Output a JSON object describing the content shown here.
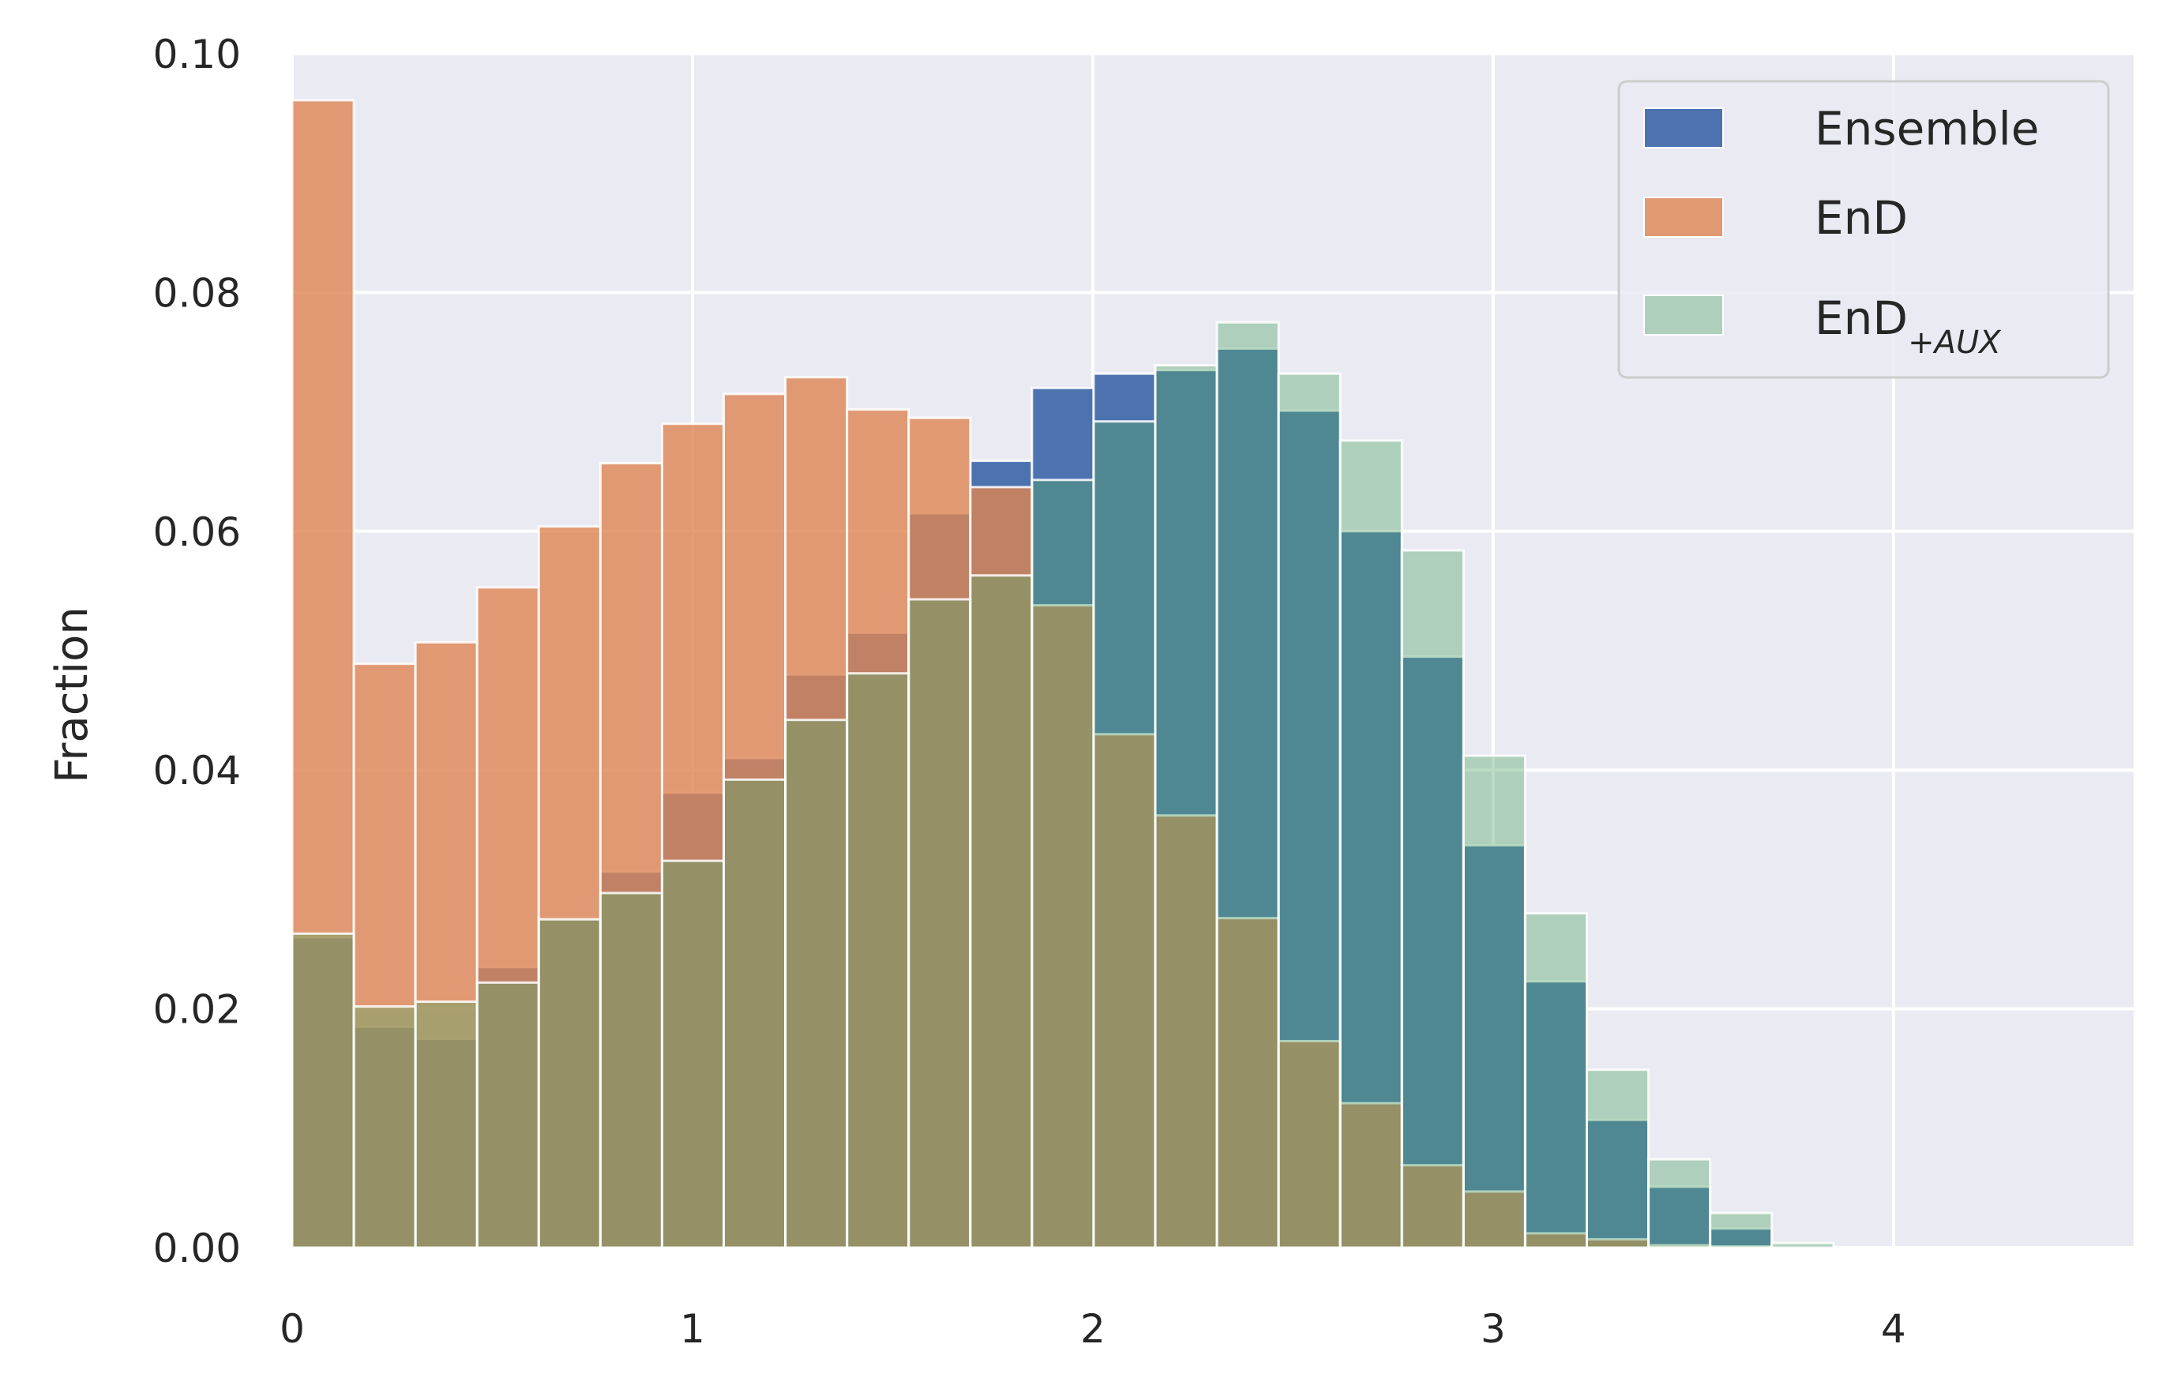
{
  "chart_data": {
    "type": "bar",
    "subtype": "overlapping-histogram",
    "title": "",
    "xlabel": "",
    "ylabel": "Fraction",
    "xlim": [
      0,
      4.6
    ],
    "ylim": [
      0,
      0.1
    ],
    "x_ticks": [
      "0",
      "1",
      "2",
      "3",
      "4"
    ],
    "y_ticks": [
      "0.00",
      "0.02",
      "0.04",
      "0.06",
      "0.08",
      "0.10"
    ],
    "grid": true,
    "legend_position": "top-right",
    "bin_edges": [
      0,
      0.154,
      0.308,
      0.462,
      0.616,
      0.77,
      0.924,
      1.078,
      1.232,
      1.386,
      1.54,
      1.694,
      1.848,
      2.002,
      2.156,
      2.31,
      2.464,
      2.618,
      2.772,
      2.926,
      3.08,
      3.234,
      3.388,
      3.542,
      3.696,
      3.85
    ],
    "series": [
      {
        "name": "Ensemble",
        "color": "#4c72b0",
        "opacity": 1.0,
        "values": [
          0.026,
          0.0185,
          0.0175,
          0.0235,
          0.0275,
          0.0315,
          0.0381,
          0.041,
          0.048,
          0.0515,
          0.0615,
          0.0659,
          0.072,
          0.0732,
          0.0735,
          0.0753,
          0.0701,
          0.06,
          0.0495,
          0.0337,
          0.0223,
          0.0107,
          0.0051,
          0.0016,
          0.0002
        ]
      },
      {
        "name": "EnD",
        "color": "#dd8452",
        "opacity": 0.8,
        "values": [
          0.0961,
          0.0489,
          0.0507,
          0.0553,
          0.0604,
          0.0657,
          0.069,
          0.0715,
          0.0729,
          0.0702,
          0.0695,
          0.0637,
          0.0538,
          0.043,
          0.0362,
          0.0276,
          0.0173,
          0.0121,
          0.0069,
          0.0047,
          0.0012,
          0.0007,
          0.0002,
          0.0001,
          0.0
        ]
      },
      {
        "name": "EnD+AUX",
        "label_main": "EnD",
        "label_sub": "+AUX",
        "color": "#55a868",
        "opacity": 0.4,
        "values": [
          0.0263,
          0.0202,
          0.0206,
          0.0222,
          0.0275,
          0.0297,
          0.0324,
          0.0392,
          0.0442,
          0.0481,
          0.0543,
          0.0563,
          0.0643,
          0.0692,
          0.0739,
          0.0775,
          0.0732,
          0.0676,
          0.0584,
          0.0412,
          0.028,
          0.0149,
          0.0074,
          0.0029,
          0.0004
        ]
      }
    ]
  }
}
